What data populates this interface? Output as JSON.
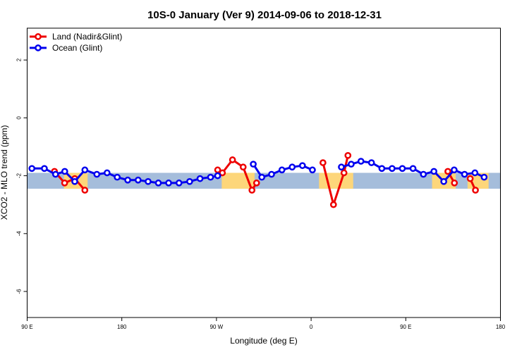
{
  "chart_data": {
    "type": "line",
    "title": "10S-0 January (Ver 9)   2014-09-06 to 2018-12-31",
    "xlabel": "Longitude (deg E)",
    "ylabel": "XCO2 - MLO trend (ppm)",
    "xlim": [
      90,
      450
    ],
    "ylim": [
      -6.9,
      3.1
    ],
    "x_ticks": [
      {
        "value": 90,
        "label": "90 E"
      },
      {
        "value": 162,
        "label": "180"
      },
      {
        "value": 234,
        "label": "90 W"
      },
      {
        "value": 306,
        "label": "0"
      },
      {
        "value": 378,
        "label": "90 E"
      },
      {
        "value": 450,
        "label": "180"
      }
    ],
    "y_ticks": [
      {
        "value": 2,
        "label": "2"
      },
      {
        "value": 0,
        "label": "0"
      },
      {
        "value": -2,
        "label": "-2"
      },
      {
        "value": -4,
        "label": "-4"
      },
      {
        "value": -6,
        "label": "-6"
      }
    ],
    "band": {
      "ymin": -2.45,
      "ymax": -1.9,
      "ocean_color": "#a5bddb",
      "land_color": "#fdd67a"
    },
    "land_segments": [
      [
        118,
        136
      ],
      [
        238,
        263
      ],
      [
        312,
        338
      ],
      [
        398,
        416
      ],
      [
        425,
        441
      ]
    ],
    "series": [
      {
        "name": "Land (Nadir&Glint)",
        "color": "#ee0000",
        "segments": [
          [
            [
              110.8,
              -1.85
            ],
            [
              118.5,
              -2.25
            ],
            [
              126.2,
              -2.1
            ],
            [
              133.9,
              -2.5
            ]
          ],
          [
            [
              234.9,
              -1.8
            ],
            [
              238.5,
              -1.9
            ],
            [
              246.2,
              -1.45
            ],
            [
              254.3,
              -1.7
            ],
            [
              261.0,
              -2.5
            ],
            [
              264.5,
              -2.25
            ]
          ],
          [
            [
              315.0,
              -1.55
            ],
            [
              323.0,
              -3.0
            ],
            [
              331.0,
              -1.9
            ],
            [
              334.0,
              -1.3
            ]
          ],
          [
            [
              410.0,
              -1.85
            ],
            [
              415.0,
              -2.25
            ]
          ],
          [
            [
              427.0,
              -2.1
            ],
            [
              431.0,
              -2.5
            ]
          ]
        ]
      },
      {
        "name": "Ocean (Glint)",
        "color": "#0000ee",
        "segments": [
          [
            [
              93.6,
              -1.75
            ],
            [
              103.1,
              -1.75
            ],
            [
              111.6,
              -1.95
            ],
            [
              118.6,
              -1.85
            ],
            [
              126.2,
              -2.2
            ],
            [
              133.9,
              -1.8
            ],
            [
              143.0,
              -1.95
            ],
            [
              150.8,
              -1.9
            ],
            [
              158.5,
              -2.05
            ],
            [
              166.5,
              -2.15
            ],
            [
              174.4,
              -2.15
            ],
            [
              182.0,
              -2.2
            ],
            [
              189.8,
              -2.25
            ],
            [
              197.6,
              -2.25
            ],
            [
              205.5,
              -2.25
            ],
            [
              213.6,
              -2.2
            ],
            [
              221.5,
              -2.1
            ],
            [
              229.5,
              -2.05
            ],
            [
              234.9,
              -2.0
            ]
          ],
          [
            [
              262.0,
              -1.6
            ],
            [
              268.5,
              -2.05
            ],
            [
              275.9,
              -1.95
            ],
            [
              283.8,
              -1.8
            ],
            [
              291.6,
              -1.7
            ],
            [
              299.4,
              -1.65
            ],
            [
              307.0,
              -1.8
            ]
          ],
          [
            [
              329.0,
              -1.7
            ],
            [
              336.5,
              -1.6
            ],
            [
              343.9,
              -1.5
            ],
            [
              351.9,
              -1.55
            ],
            [
              359.8,
              -1.75
            ],
            [
              367.6,
              -1.75
            ],
            [
              375.4,
              -1.75
            ],
            [
              383.5,
              -1.75
            ],
            [
              391.4,
              -1.95
            ],
            [
              399.4,
              -1.85
            ],
            [
              406.9,
              -2.2
            ],
            [
              414.8,
              -1.8
            ],
            [
              422.7,
              -1.95
            ],
            [
              430.6,
              -1.9
            ],
            [
              437.6,
              -2.05
            ]
          ]
        ]
      }
    ],
    "legend": {
      "position": "top-left"
    }
  }
}
